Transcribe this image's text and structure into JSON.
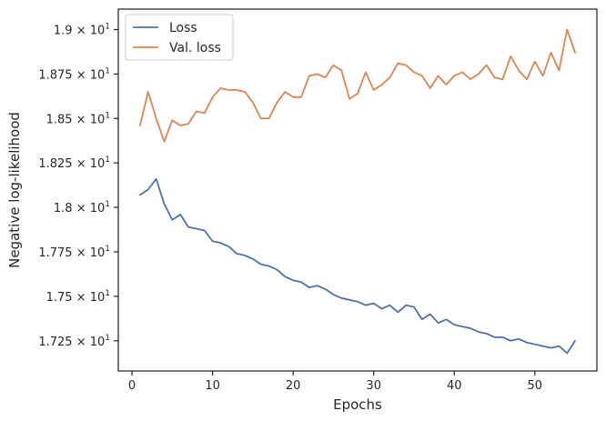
{
  "chart_data": {
    "type": "line",
    "title": "",
    "xlabel": "Epochs",
    "ylabel": "Negative log-likelihood",
    "xlim": [
      -1.7,
      57.7
    ],
    "ylim": [
      17.08,
      19.115
    ],
    "x_ticks": [
      0,
      10,
      20,
      30,
      40,
      50
    ],
    "y_ticks": [
      {
        "value": 17.25,
        "mantissa": "1.725"
      },
      {
        "value": 17.5,
        "mantissa": "1.75"
      },
      {
        "value": 17.75,
        "mantissa": "1.775"
      },
      {
        "value": 18.0,
        "mantissa": "1.8"
      },
      {
        "value": 18.25,
        "mantissa": "1.825"
      },
      {
        "value": 18.5,
        "mantissa": "1.85"
      },
      {
        "value": 18.75,
        "mantissa": "1.875"
      },
      {
        "value": 19.0,
        "mantissa": "1.9"
      }
    ],
    "y_tick_base": "× 10",
    "y_tick_exponent": "1",
    "grid": false,
    "legend_position": "top-left",
    "x": [
      1,
      2,
      3,
      4,
      5,
      6,
      7,
      8,
      9,
      10,
      11,
      12,
      13,
      14,
      15,
      16,
      17,
      18,
      19,
      20,
      21,
      22,
      23,
      24,
      25,
      26,
      27,
      28,
      29,
      30,
      31,
      32,
      33,
      34,
      35,
      36,
      37,
      38,
      39,
      40,
      41,
      42,
      43,
      44,
      45,
      46,
      47,
      48,
      49,
      50,
      51,
      52,
      53,
      54,
      55
    ],
    "series": [
      {
        "name": "Loss",
        "color": "#4c72b0",
        "values": [
          18.07,
          18.1,
          18.16,
          18.02,
          17.93,
          17.96,
          17.89,
          17.88,
          17.87,
          17.81,
          17.8,
          17.78,
          17.74,
          17.73,
          17.71,
          17.68,
          17.67,
          17.65,
          17.61,
          17.59,
          17.58,
          17.55,
          17.56,
          17.54,
          17.51,
          17.49,
          17.48,
          17.47,
          17.45,
          17.46,
          17.43,
          17.45,
          17.41,
          17.45,
          17.44,
          17.37,
          17.4,
          17.35,
          17.37,
          17.34,
          17.33,
          17.32,
          17.3,
          17.29,
          17.27,
          17.27,
          17.25,
          17.26,
          17.24,
          17.23,
          17.22,
          17.21,
          17.22,
          17.18,
          17.25
        ]
      },
      {
        "name": "Val. loss",
        "color": "#dd8452",
        "values": [
          18.46,
          18.65,
          18.5,
          18.37,
          18.49,
          18.46,
          18.47,
          18.54,
          18.53,
          18.62,
          18.67,
          18.66,
          18.66,
          18.65,
          18.59,
          18.5,
          18.5,
          18.59,
          18.65,
          18.62,
          18.62,
          18.74,
          18.75,
          18.73,
          18.8,
          18.77,
          18.61,
          18.64,
          18.76,
          18.66,
          18.69,
          18.73,
          18.81,
          18.8,
          18.76,
          18.74,
          18.67,
          18.74,
          18.69,
          18.74,
          18.76,
          18.72,
          18.75,
          18.8,
          18.73,
          18.72,
          18.85,
          18.77,
          18.72,
          18.82,
          18.74,
          18.87,
          18.77,
          19.0,
          18.87
        ]
      }
    ]
  }
}
